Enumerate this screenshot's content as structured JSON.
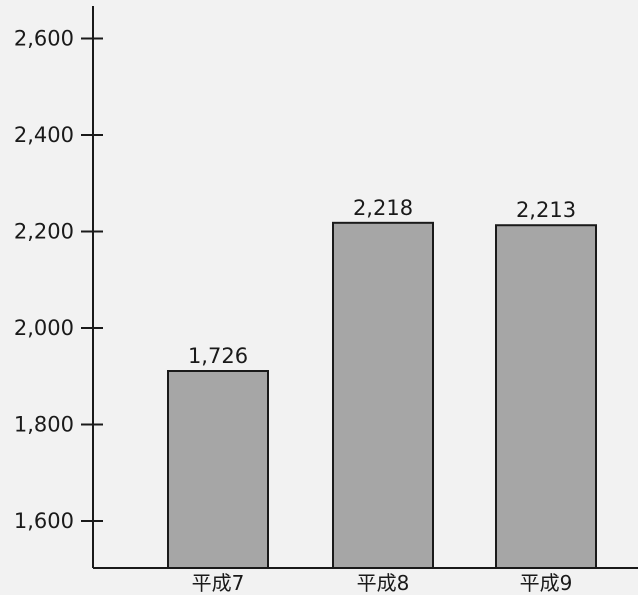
{
  "chart_data": {
    "type": "bar",
    "categories": [
      "平成7",
      "平成8",
      "平成9"
    ],
    "values": [
      1726,
      2218,
      2213
    ],
    "data_labels": [
      "1,726",
      "2,218",
      "2,213"
    ],
    "yticks": [
      1600,
      1800,
      2000,
      2200,
      2400,
      2600
    ],
    "ytick_labels": [
      "1,600",
      "1,800",
      "2,000",
      "2,200",
      "2,400",
      "2,600"
    ],
    "ylim": [
      1500,
      2700
    ],
    "title": "",
    "xlabel": "",
    "ylabel": "",
    "grid": false,
    "colors": {
      "bar": "#a6a6a6",
      "bar_edge": "#1a1a1a",
      "axis": "#1a1a1a",
      "background": "#f2f2f2"
    }
  }
}
